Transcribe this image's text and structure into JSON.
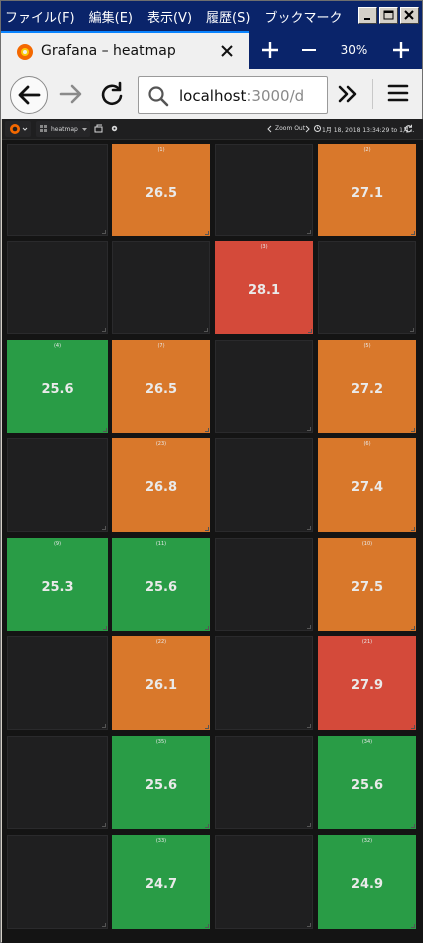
{
  "menubar": {
    "items": [
      "ファイル(F)",
      "編集(E)",
      "表示(V)",
      "履歴(S)",
      "ブックマーク"
    ]
  },
  "tab": {
    "title": "Grafana – heatmap",
    "favicon": "grafana-logo-icon"
  },
  "toolbar": {
    "zoom_level": "30%"
  },
  "urlbar": {
    "host": "localhost",
    "rest": ":3000/d"
  },
  "grafana": {
    "dashboard_title": "heatmap",
    "zoom_out_label": "Zoom Out",
    "time_range": "1月 18, 2018 13:34:29 to 1月...",
    "colors": {
      "green": "#299c46",
      "orange": "#d9782b",
      "red": "#d44a3a"
    }
  },
  "cells": [
    {
      "title": "",
      "value": "",
      "color": ""
    },
    {
      "title": "(1)",
      "value": "26.5",
      "color": "orange"
    },
    {
      "title": "",
      "value": "",
      "color": ""
    },
    {
      "title": "(2)",
      "value": "27.1",
      "color": "orange"
    },
    {
      "title": "",
      "value": "",
      "color": ""
    },
    {
      "title": "",
      "value": "",
      "color": ""
    },
    {
      "title": "(3)",
      "value": "28.1",
      "color": "red"
    },
    {
      "title": "",
      "value": "",
      "color": ""
    },
    {
      "title": "(4)",
      "value": "25.6",
      "color": "green"
    },
    {
      "title": "(7)",
      "value": "26.5",
      "color": "orange"
    },
    {
      "title": "",
      "value": "",
      "color": ""
    },
    {
      "title": "(5)",
      "value": "27.2",
      "color": "orange"
    },
    {
      "title": "",
      "value": "",
      "color": ""
    },
    {
      "title": "(23)",
      "value": "26.8",
      "color": "orange"
    },
    {
      "title": "",
      "value": "",
      "color": ""
    },
    {
      "title": "(6)",
      "value": "27.4",
      "color": "orange"
    },
    {
      "title": "(9)",
      "value": "25.3",
      "color": "green"
    },
    {
      "title": "(11)",
      "value": "25.6",
      "color": "green"
    },
    {
      "title": "",
      "value": "",
      "color": ""
    },
    {
      "title": "(10)",
      "value": "27.5",
      "color": "orange"
    },
    {
      "title": "",
      "value": "",
      "color": ""
    },
    {
      "title": "(22)",
      "value": "26.1",
      "color": "orange"
    },
    {
      "title": "",
      "value": "",
      "color": ""
    },
    {
      "title": "(21)",
      "value": "27.9",
      "color": "red"
    },
    {
      "title": "",
      "value": "",
      "color": ""
    },
    {
      "title": "(35)",
      "value": "25.6",
      "color": "green"
    },
    {
      "title": "",
      "value": "",
      "color": ""
    },
    {
      "title": "(34)",
      "value": "25.6",
      "color": "green"
    },
    {
      "title": "",
      "value": "",
      "color": ""
    },
    {
      "title": "(33)",
      "value": "24.7",
      "color": "green"
    },
    {
      "title": "",
      "value": "",
      "color": ""
    },
    {
      "title": "(32)",
      "value": "24.9",
      "color": "green"
    }
  ]
}
